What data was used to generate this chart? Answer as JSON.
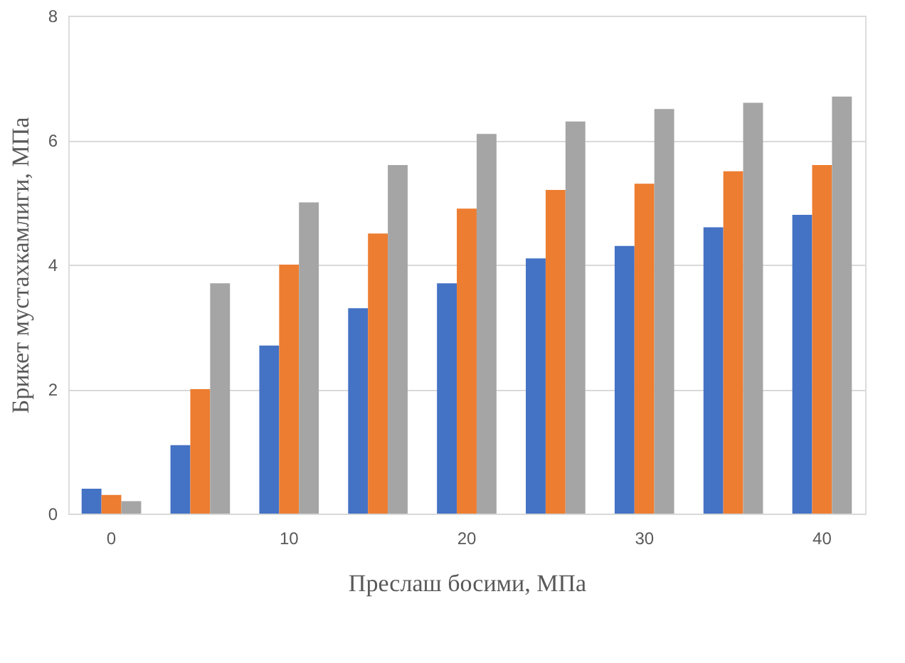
{
  "chart_data": {
    "type": "bar",
    "xlabel": "Преслаш босими, МПа",
    "ylabel": "Брикет мустахкамлиги, МПа",
    "categories": [
      "0",
      null,
      "10",
      null,
      "20",
      null,
      "30",
      null,
      "40"
    ],
    "series": [
      {
        "color": "#4472c4",
        "values": [
          0.4,
          1.1,
          2.7,
          3.3,
          3.7,
          4.1,
          4.3,
          4.6,
          4.8
        ]
      },
      {
        "color": "#ed7d31",
        "values": [
          0.3,
          2.0,
          4.0,
          4.5,
          4.9,
          5.2,
          5.3,
          5.5,
          5.6
        ]
      },
      {
        "color": "#a5a5a5",
        "values": [
          0.2,
          3.7,
          5.0,
          5.6,
          6.1,
          6.3,
          6.5,
          6.6,
          6.7
        ]
      }
    ],
    "ylim": [
      0,
      8
    ],
    "yticks": [
      0,
      2,
      4,
      6,
      8
    ],
    "grid": "y",
    "legend": false
  }
}
